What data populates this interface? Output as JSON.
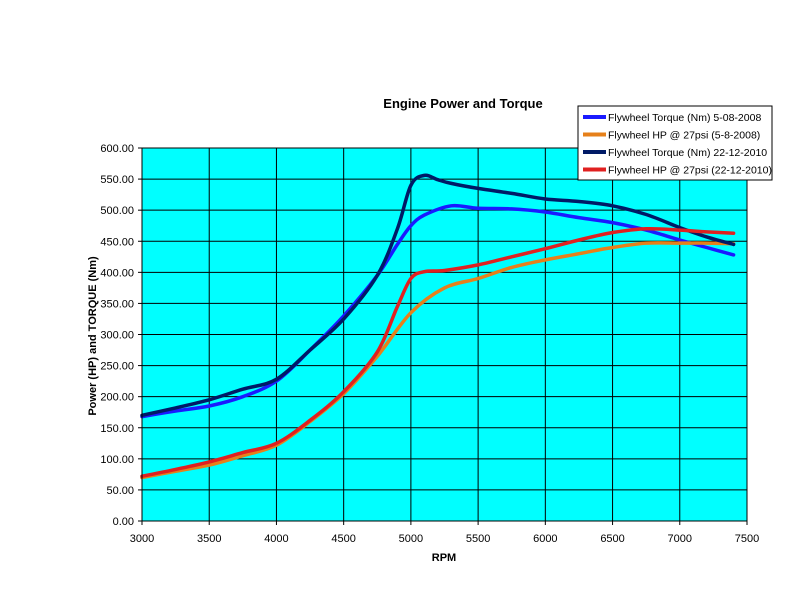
{
  "chart_data": {
    "type": "line",
    "title": "Engine Power and Torque",
    "xlabel": "RPM",
    "ylabel": "Power (HP) and TORQUE (Nm)",
    "xlim": [
      3000,
      7500
    ],
    "ylim": [
      0,
      600
    ],
    "xticks": [
      3000,
      3500,
      4000,
      4500,
      5000,
      5500,
      6000,
      6500,
      7000,
      7500
    ],
    "yticks": [
      "0.00",
      "50.00",
      "100.00",
      "150.00",
      "200.00",
      "250.00",
      "300.00",
      "350.00",
      "400.00",
      "450.00",
      "500.00",
      "550.00",
      "600.00"
    ],
    "grid": true,
    "background": "#00ffff",
    "legend_position": "top-right",
    "series": [
      {
        "name": "Flywheel Torque (Nm) 5-08-2008",
        "color": "#1a1aff",
        "x": [
          3000,
          3250,
          3500,
          3750,
          4000,
          4250,
          4500,
          4750,
          4900,
          5000,
          5100,
          5300,
          5500,
          5750,
          6000,
          6250,
          6500,
          6750,
          7000,
          7200,
          7400
        ],
        "y": [
          168,
          177,
          185,
          200,
          225,
          275,
          330,
          395,
          445,
          475,
          492,
          507,
          503,
          502,
          497,
          488,
          480,
          468,
          452,
          440,
          428
        ]
      },
      {
        "name": "Flywheel HP @ 27psi (5-8-2008)",
        "color": "#e6801a",
        "x": [
          3000,
          3250,
          3500,
          3750,
          4000,
          4250,
          4500,
          4750,
          5000,
          5250,
          5500,
          5750,
          6000,
          6250,
          6500,
          6750,
          7000,
          7200,
          7400
        ],
        "y": [
          70,
          80,
          90,
          105,
          122,
          160,
          205,
          265,
          335,
          375,
          390,
          408,
          420,
          430,
          440,
          447,
          447,
          447,
          446
        ]
      },
      {
        "name": "Flywheel Torque (Nm) 22-12-2010",
        "color": "#001a66",
        "x": [
          3000,
          3250,
          3500,
          3750,
          4000,
          4250,
          4500,
          4750,
          4900,
          5000,
          5100,
          5200,
          5300,
          5500,
          5750,
          6000,
          6250,
          6500,
          6750,
          7000,
          7200,
          7400
        ],
        "y": [
          170,
          182,
          195,
          212,
          228,
          275,
          325,
          395,
          470,
          540,
          556,
          549,
          543,
          535,
          527,
          518,
          514,
          507,
          493,
          472,
          457,
          445
        ]
      },
      {
        "name": "Flywheel HP @ 27psi (22-12-2010)",
        "color": "#e02020",
        "x": [
          3000,
          3250,
          3500,
          3750,
          4000,
          4250,
          4500,
          4750,
          4900,
          5000,
          5100,
          5250,
          5500,
          5750,
          6000,
          6250,
          6500,
          6750,
          7000,
          7200,
          7400
        ],
        "y": [
          72,
          83,
          95,
          110,
          125,
          162,
          208,
          272,
          345,
          390,
          401,
          403,
          412,
          425,
          438,
          452,
          464,
          470,
          468,
          465,
          463
        ]
      }
    ]
  }
}
